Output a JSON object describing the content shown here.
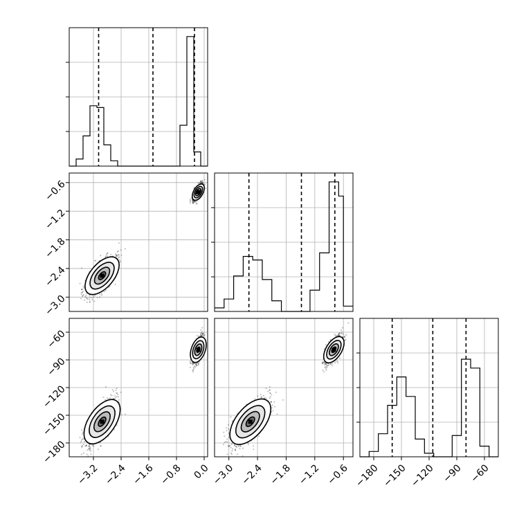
{
  "chart_data": {
    "type": "corner",
    "grid": true,
    "parameters": [
      {
        "range": [
          -3.9,
          0.1
        ],
        "ticks": [
          -3.2,
          -2.4,
          -1.6,
          -0.8,
          0.0
        ],
        "tick_labels": [
          "−3.2",
          "−2.4",
          "−1.6",
          "−0.8",
          "0.0"
        ],
        "quantiles": [
          -3.05,
          -1.48,
          -0.28
        ],
        "hist": {
          "edges": [
            -3.9,
            -3.7,
            -3.5,
            -3.3,
            -3.1,
            -2.9,
            -2.7,
            -2.5,
            -2.3,
            -2.1,
            -0.7,
            -0.5,
            -0.3,
            -0.1,
            0.1
          ],
          "counts": [
            0,
            0.04,
            0.17,
            0.34,
            0.33,
            0.12,
            0.03,
            0,
            0,
            0,
            0.23,
            0.73,
            0.08,
            0
          ],
          "ymax": 0.78
        }
      },
      {
        "range": [
          -3.3,
          -0.4
        ],
        "ticks": [
          -3.0,
          -2.4,
          -1.8,
          -1.2,
          -0.6
        ],
        "tick_labels": [
          "−3.0",
          "−2.4",
          "−1.8",
          "−1.2",
          "−0.6"
        ],
        "quantiles": [
          -2.58,
          -1.48,
          -0.78
        ],
        "hist": {
          "edges": [
            -3.3,
            -3.1,
            -2.9,
            -2.7,
            -2.5,
            -2.3,
            -2.1,
            -1.9,
            -1.3,
            -1.1,
            -0.9,
            -0.7,
            -0.6,
            -0.4
          ],
          "counts": [
            0.02,
            0.07,
            0.2,
            0.31,
            0.29,
            0.18,
            0.06,
            0,
            0.12,
            0.33,
            0.73,
            0.65,
            0.03
          ],
          "ymax": 0.78
        }
      },
      {
        "range": [
          -195,
          -45
        ],
        "ticks": [
          -180,
          -150,
          -120,
          -90,
          -60
        ],
        "tick_labels": [
          "−180",
          "−150",
          "−120",
          "−90",
          "−60"
        ],
        "quantiles": [
          -160,
          -116,
          -80
        ],
        "hist": {
          "edges": [
            -195,
            -185,
            -175,
            -165,
            -155,
            -145,
            -135,
            -125,
            -115,
            -105,
            -95,
            -85,
            -75,
            -65,
            -55,
            -45
          ],
          "counts": [
            0,
            0.03,
            0.13,
            0.29,
            0.45,
            0.34,
            0.1,
            0.02,
            0,
            0,
            0.12,
            0.55,
            0.5,
            0.06,
            0
          ],
          "ymax": 0.78
        }
      }
    ],
    "clusters": [
      {
        "mean": [
          -2.95,
          -2.55,
          -157
        ],
        "sd": [
          0.23,
          0.2,
          12.5
        ],
        "weight": 0.5
      },
      {
        "mean": [
          -0.17,
          -0.8,
          -79
        ],
        "sd": [
          0.07,
          0.09,
          7.5
        ],
        "weight": 0.5
      }
    ]
  }
}
